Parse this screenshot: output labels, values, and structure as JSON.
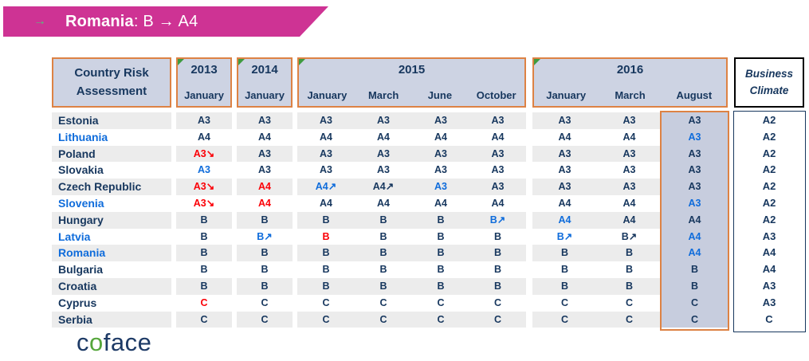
{
  "banner": {
    "bullet": "→",
    "country": "Romania",
    "suffix": ": B → A4"
  },
  "table": {
    "corner": {
      "line1": "Country Risk",
      "line2": "Assessment"
    },
    "groups": [
      {
        "year": "2013",
        "months": [
          "January"
        ]
      },
      {
        "year": "2014",
        "months": [
          "January"
        ]
      },
      {
        "year": "2015",
        "months": [
          "January",
          "March",
          "June",
          "October"
        ]
      },
      {
        "year": "2016",
        "months": [
          "January",
          "March",
          "August"
        ]
      }
    ],
    "bc_header": {
      "line1": "Business",
      "line2": "Climate"
    },
    "highlighted_column": "2016 August",
    "colors": {
      "navy": "#17375E",
      "blue": "#0F6CDB",
      "red": "#FB0007",
      "highlight_bg": "#C7CDDE",
      "border_orange": "#DD8244"
    },
    "rows": [
      {
        "country": "Estonia",
        "cc": "n",
        "cells": [
          [
            "A3",
            "n"
          ],
          [
            "A3",
            "n"
          ],
          [
            "A3",
            "n"
          ],
          [
            "A3",
            "n"
          ],
          [
            "A3",
            "n"
          ],
          [
            "A3",
            "n"
          ],
          [
            "A3",
            "n"
          ],
          [
            "A3",
            "n"
          ],
          [
            "A3",
            "n"
          ]
        ],
        "bc": "A2"
      },
      {
        "country": "Lithuania",
        "cc": "b",
        "cells": [
          [
            "A4",
            "n"
          ],
          [
            "A4",
            "n"
          ],
          [
            "A4",
            "n"
          ],
          [
            "A4",
            "n"
          ],
          [
            "A4",
            "n"
          ],
          [
            "A4",
            "n"
          ],
          [
            "A4",
            "n"
          ],
          [
            "A4",
            "n"
          ],
          [
            "A3",
            "b"
          ]
        ],
        "bc": "A2"
      },
      {
        "country": "Poland",
        "cc": "n",
        "cells": [
          [
            "A3↘",
            "r"
          ],
          [
            "A3",
            "n"
          ],
          [
            "A3",
            "n"
          ],
          [
            "A3",
            "n"
          ],
          [
            "A3",
            "n"
          ],
          [
            "A3",
            "n"
          ],
          [
            "A3",
            "n"
          ],
          [
            "A3",
            "n"
          ],
          [
            "A3",
            "n"
          ]
        ],
        "bc": "A2"
      },
      {
        "country": "Slovakia",
        "cc": "n",
        "cells": [
          [
            "A3",
            "b"
          ],
          [
            "A3",
            "n"
          ],
          [
            "A3",
            "n"
          ],
          [
            "A3",
            "n"
          ],
          [
            "A3",
            "n"
          ],
          [
            "A3",
            "n"
          ],
          [
            "A3",
            "n"
          ],
          [
            "A3",
            "n"
          ],
          [
            "A3",
            "n"
          ]
        ],
        "bc": "A2"
      },
      {
        "country": "Czech Republic",
        "cc": "n",
        "cells": [
          [
            "A3↘",
            "r"
          ],
          [
            "A4",
            "r"
          ],
          [
            "A4↗",
            "b"
          ],
          [
            "A4↗",
            "n"
          ],
          [
            "A3",
            "b"
          ],
          [
            "A3",
            "n"
          ],
          [
            "A3",
            "n"
          ],
          [
            "A3",
            "n"
          ],
          [
            "A3",
            "n"
          ]
        ],
        "bc": "A2"
      },
      {
        "country": "Slovenia",
        "cc": "b",
        "cells": [
          [
            "A3↘",
            "r"
          ],
          [
            "A4",
            "r"
          ],
          [
            "A4",
            "n"
          ],
          [
            "A4",
            "n"
          ],
          [
            "A4",
            "n"
          ],
          [
            "A4",
            "n"
          ],
          [
            "A4",
            "n"
          ],
          [
            "A4",
            "n"
          ],
          [
            "A3",
            "b"
          ]
        ],
        "bc": "A2"
      },
      {
        "country": "Hungary",
        "cc": "n",
        "cells": [
          [
            "B",
            "n"
          ],
          [
            "B",
            "n"
          ],
          [
            "B",
            "n"
          ],
          [
            "B",
            "n"
          ],
          [
            "B",
            "n"
          ],
          [
            "B↗",
            "b"
          ],
          [
            "A4",
            "b"
          ],
          [
            "A4",
            "n"
          ],
          [
            "A4",
            "n"
          ]
        ],
        "bc": "A2"
      },
      {
        "country": "Latvia",
        "cc": "b",
        "cells": [
          [
            "B",
            "n"
          ],
          [
            "B↗",
            "b"
          ],
          [
            "B",
            "r"
          ],
          [
            "B",
            "n"
          ],
          [
            "B",
            "n"
          ],
          [
            "B",
            "n"
          ],
          [
            "B↗",
            "b"
          ],
          [
            "B↗",
            "n"
          ],
          [
            "A4",
            "b"
          ]
        ],
        "bc": "A3"
      },
      {
        "country": "Romania",
        "cc": "b",
        "cells": [
          [
            "B",
            "n"
          ],
          [
            "B",
            "n"
          ],
          [
            "B",
            "n"
          ],
          [
            "B",
            "n"
          ],
          [
            "B",
            "n"
          ],
          [
            "B",
            "n"
          ],
          [
            "B",
            "n"
          ],
          [
            "B",
            "n"
          ],
          [
            "A4",
            "b"
          ]
        ],
        "bc": "A4"
      },
      {
        "country": "Bulgaria",
        "cc": "n",
        "cells": [
          [
            "B",
            "n"
          ],
          [
            "B",
            "n"
          ],
          [
            "B",
            "n"
          ],
          [
            "B",
            "n"
          ],
          [
            "B",
            "n"
          ],
          [
            "B",
            "n"
          ],
          [
            "B",
            "n"
          ],
          [
            "B",
            "n"
          ],
          [
            "B",
            "n"
          ]
        ],
        "bc": "A4"
      },
      {
        "country": "Croatia",
        "cc": "n",
        "cells": [
          [
            "B",
            "n"
          ],
          [
            "B",
            "n"
          ],
          [
            "B",
            "n"
          ],
          [
            "B",
            "n"
          ],
          [
            "B",
            "n"
          ],
          [
            "B",
            "n"
          ],
          [
            "B",
            "n"
          ],
          [
            "B",
            "n"
          ],
          [
            "B",
            "n"
          ]
        ],
        "bc": "A3"
      },
      {
        "country": "Cyprus",
        "cc": "n",
        "cells": [
          [
            "C",
            "r"
          ],
          [
            "C",
            "n"
          ],
          [
            "C",
            "n"
          ],
          [
            "C",
            "n"
          ],
          [
            "C",
            "n"
          ],
          [
            "C",
            "n"
          ],
          [
            "C",
            "n"
          ],
          [
            "C",
            "n"
          ],
          [
            "C",
            "n"
          ]
        ],
        "bc": "A3"
      },
      {
        "country": "Serbia",
        "cc": "n",
        "cells": [
          [
            "C",
            "n"
          ],
          [
            "C",
            "n"
          ],
          [
            "C",
            "n"
          ],
          [
            "C",
            "n"
          ],
          [
            "C",
            "n"
          ],
          [
            "C",
            "n"
          ],
          [
            "C",
            "n"
          ],
          [
            "C",
            "n"
          ],
          [
            "C",
            "n"
          ]
        ],
        "bc": "C"
      }
    ]
  },
  "logo": {
    "c": "c",
    "o": "o",
    "face": "face"
  }
}
